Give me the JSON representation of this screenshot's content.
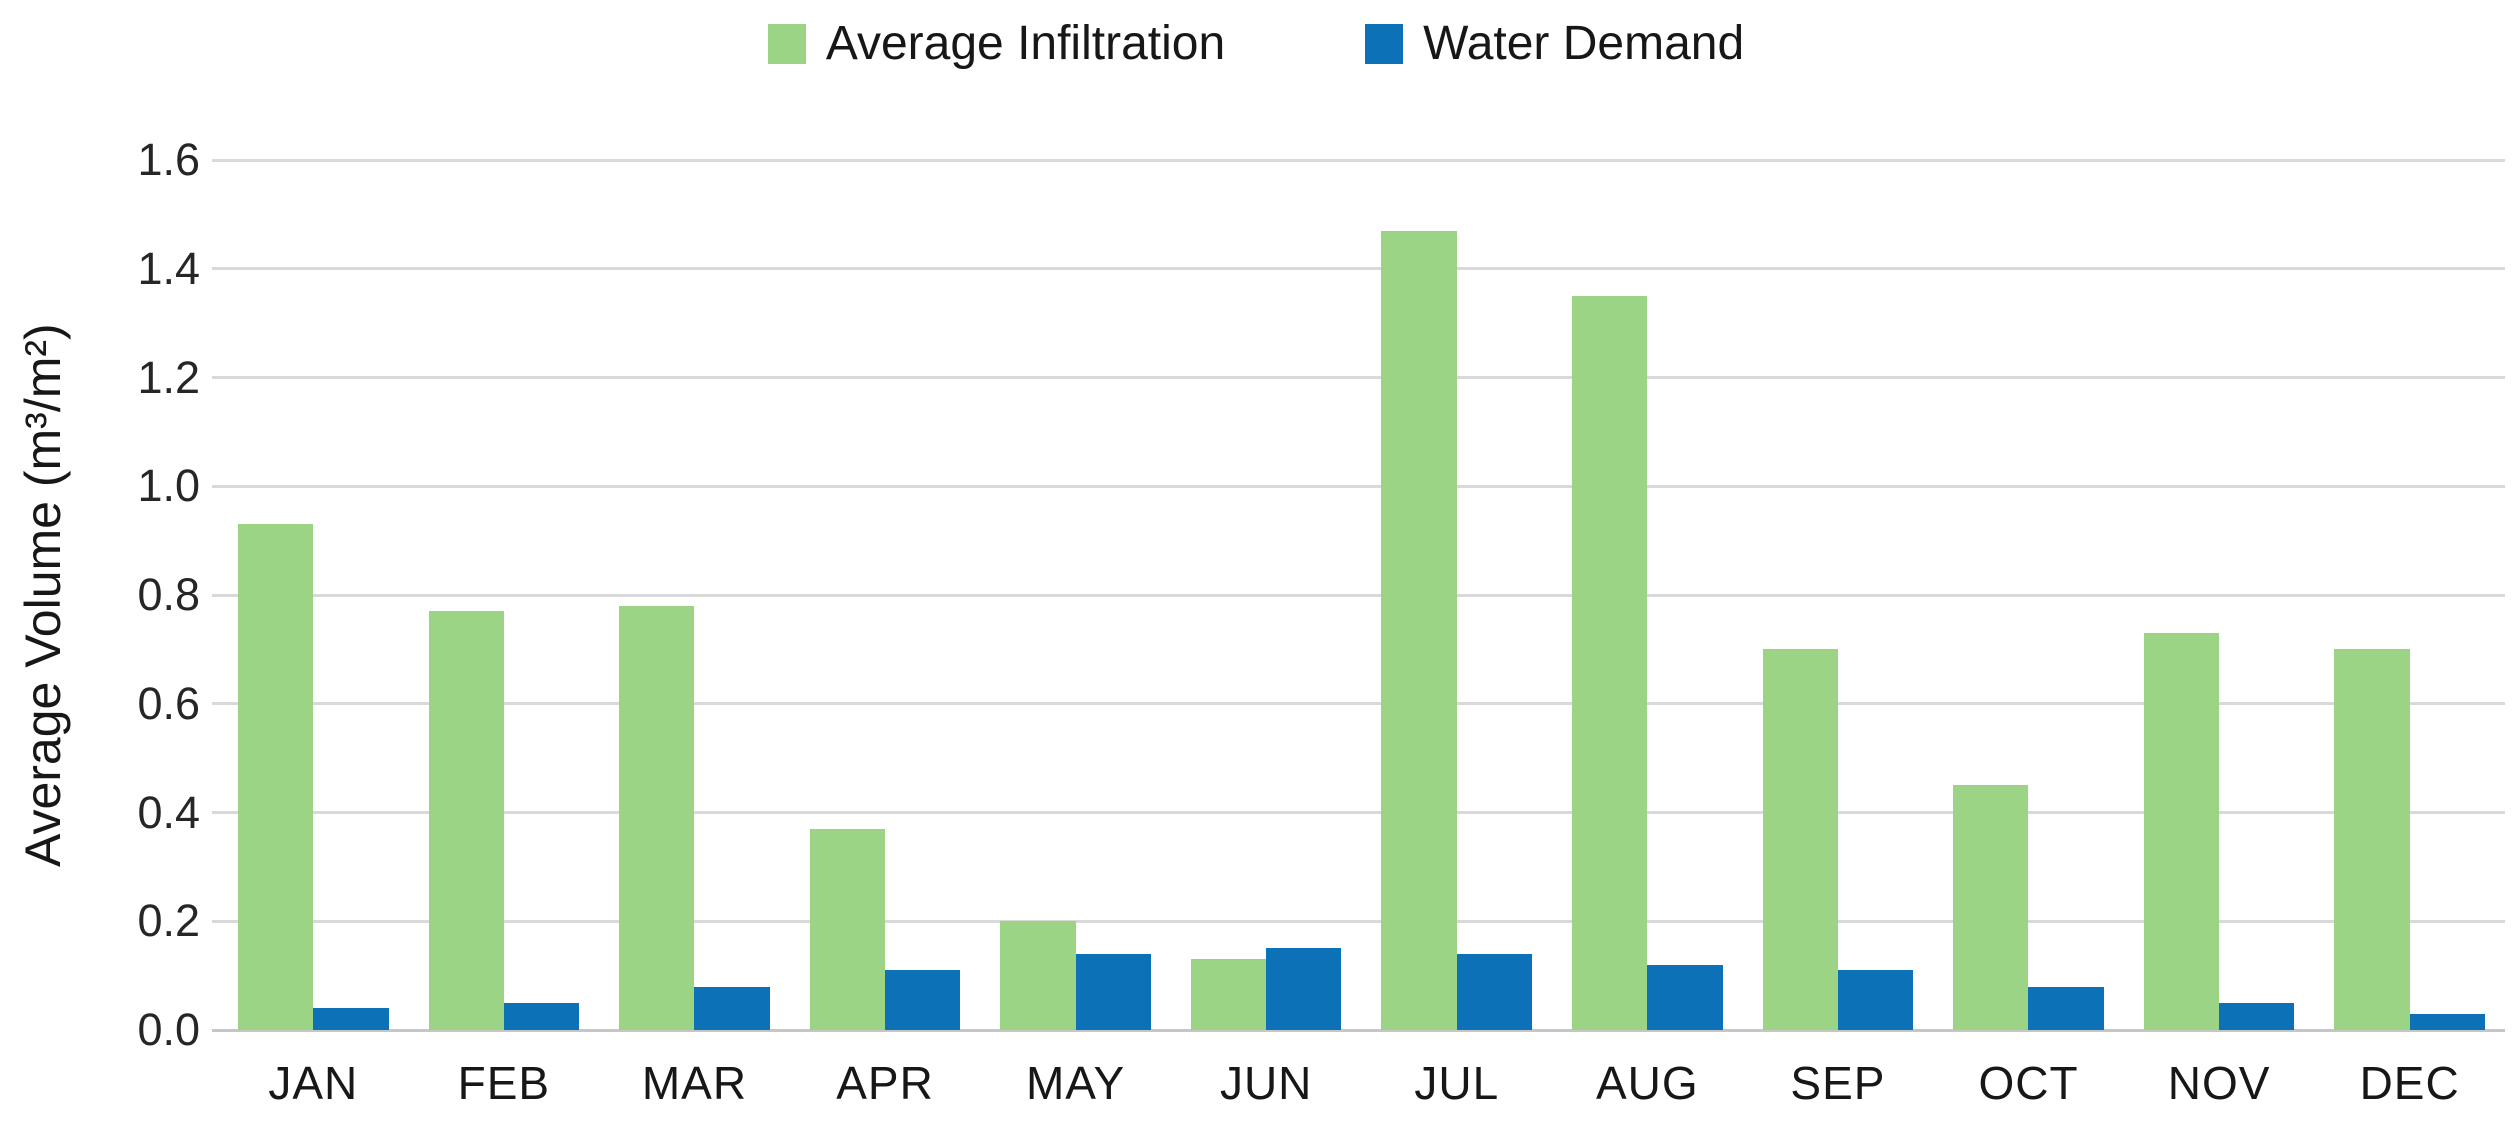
{
  "chart_data": {
    "type": "bar",
    "title": "",
    "categories": [
      "JAN",
      "FEB",
      "MAR",
      "APR",
      "MAY",
      "JUN",
      "JUL",
      "AUG",
      "SEP",
      "OCT",
      "NOV",
      "DEC"
    ],
    "series": [
      {
        "name": "Average Infiltration",
        "color": "#9CD486",
        "values": [
          0.93,
          0.77,
          0.78,
          0.37,
          0.2,
          0.13,
          1.47,
          1.35,
          0.7,
          0.45,
          0.73,
          0.7
        ]
      },
      {
        "name": "Water Demand",
        "color": "#0D71B8",
        "values": [
          0.04,
          0.05,
          0.08,
          0.11,
          0.14,
          0.15,
          0.14,
          0.12,
          0.11,
          0.08,
          0.05,
          0.03
        ]
      }
    ],
    "xlabel": "",
    "ylabel": "Average Volume (m³/m²)",
    "ylim": [
      0,
      1.6
    ],
    "ytick_step": 0.2,
    "yticks": [
      "0.0",
      "0.2",
      "0.4",
      "0.6",
      "0.8",
      "1.0",
      "1.2",
      "1.4",
      "1.6"
    ],
    "grid": true,
    "legend_position": "top",
    "grid_color": "#D9D9D9",
    "axis_line_color": "#C6C6C6",
    "text_color": "#1F1F1F"
  }
}
